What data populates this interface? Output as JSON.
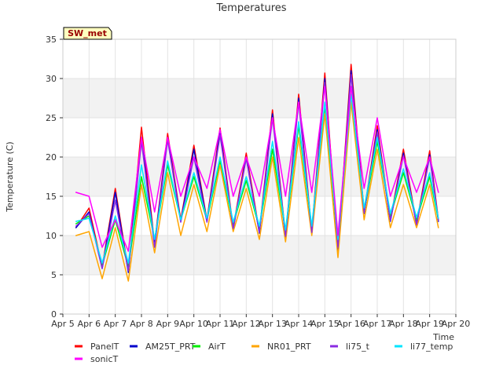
{
  "chart_data": {
    "type": "line",
    "title": "Temperatures",
    "xlabel": "Time",
    "ylabel": "Temperature (C)",
    "annotation": "SW_met",
    "x_ticks": [
      "Apr 5",
      "Apr 6",
      "Apr 7",
      "Apr 8",
      "Apr 9",
      "Apr 10",
      "Apr 11",
      "Apr 12",
      "Apr 13",
      "Apr 14",
      "Apr 15",
      "Apr 16",
      "Apr 17",
      "Apr 18",
      "Apr 19",
      "Apr 20"
    ],
    "y_ticks": [
      "0",
      "5",
      "10",
      "15",
      "20",
      "25",
      "30",
      "35"
    ],
    "ylim": [
      0,
      35
    ],
    "xlim": [
      "2024-04-05",
      "2024-04-20"
    ],
    "grid": true,
    "banded_background": true,
    "legend_position": "bottom",
    "x_dates": [
      "Apr 5 12:00",
      "Apr 6 00:00",
      "Apr 6 12:00",
      "Apr 7 00:00",
      "Apr 7 12:00",
      "Apr 8 00:00",
      "Apr 8 12:00",
      "Apr 9 00:00",
      "Apr 9 12:00",
      "Apr 10 00:00",
      "Apr 10 12:00",
      "Apr 11 00:00",
      "Apr 11 12:00",
      "Apr 12 00:00",
      "Apr 12 12:00",
      "Apr 13 00:00",
      "Apr 13 12:00",
      "Apr 14 00:00",
      "Apr 14 12:00",
      "Apr 15 00:00",
      "Apr 15 12:00",
      "Apr 16 00:00",
      "Apr 16 12:00",
      "Apr 17 00:00",
      "Apr 17 12:00",
      "Apr 18 00:00",
      "Apr 18 12:00",
      "Apr 19 00:00",
      "Apr 19 08:00"
    ],
    "series": [
      {
        "name": "PanelT",
        "color": "#ff0000",
        "values": [
          11.0,
          13.5,
          6.0,
          16.0,
          5.5,
          23.8,
          9.0,
          23.0,
          12.0,
          21.5,
          12.0,
          23.7,
          11.0,
          20.5,
          10.5,
          26.0,
          10.0,
          28.0,
          10.5,
          30.7,
          8.0,
          31.8,
          13.0,
          24.0,
          12.0,
          21.0,
          11.5,
          20.8,
          12.0
        ]
      },
      {
        "name": "AM25T_PRT",
        "color": "#0000cc",
        "values": [
          11.0,
          13.0,
          5.8,
          15.5,
          5.3,
          22.5,
          8.8,
          22.5,
          11.8,
          21.0,
          11.8,
          23.2,
          10.8,
          20.0,
          10.3,
          25.5,
          9.8,
          27.5,
          10.3,
          30.0,
          8.0,
          31.0,
          12.8,
          23.5,
          11.8,
          20.5,
          11.3,
          20.3,
          11.8
        ]
      },
      {
        "name": "AirT",
        "color": "#00ee00",
        "values": [
          11.5,
          12.5,
          6.2,
          12.0,
          6.0,
          17.5,
          9.5,
          19.0,
          12.0,
          17.5,
          12.0,
          19.5,
          11.5,
          17.0,
          11.0,
          21.0,
          10.5,
          24.0,
          11.0,
          26.5,
          9.0,
          28.0,
          13.0,
          22.0,
          12.5,
          18.0,
          12.0,
          17.5,
          12.0
        ]
      },
      {
        "name": "NR01_PRT",
        "color": "#ffa500",
        "values": [
          10.0,
          10.5,
          4.5,
          11.0,
          4.2,
          16.5,
          7.8,
          18.0,
          10.0,
          16.5,
          10.5,
          19.0,
          10.5,
          16.0,
          9.5,
          20.0,
          9.2,
          22.5,
          10.0,
          25.5,
          7.2,
          27.0,
          12.0,
          21.0,
          11.0,
          16.5,
          11.0,
          16.5,
          11.0
        ]
      },
      {
        "name": "li75_t",
        "color": "#8a2be2",
        "values": [
          11.2,
          12.8,
          5.8,
          14.5,
          5.5,
          22.0,
          8.5,
          22.2,
          11.7,
          20.0,
          11.7,
          22.8,
          10.9,
          19.8,
          10.4,
          25.0,
          9.9,
          27.0,
          10.4,
          29.5,
          8.5,
          30.5,
          12.9,
          23.2,
          11.9,
          20.2,
          11.4,
          20.0,
          11.9
        ]
      },
      {
        "name": "li77_temp",
        "color": "#00e5ff",
        "values": [
          11.8,
          12.2,
          6.5,
          12.5,
          6.5,
          19.0,
          9.5,
          19.5,
          12.0,
          18.0,
          12.2,
          20.0,
          11.7,
          17.5,
          11.2,
          22.0,
          10.7,
          24.5,
          11.2,
          27.0,
          9.5,
          28.0,
          13.5,
          22.5,
          12.8,
          18.5,
          12.3,
          18.0,
          12.2
        ]
      },
      {
        "name": "sonicT",
        "color": "#ff00ff",
        "values": [
          15.5,
          15.0,
          8.5,
          12.0,
          8.0,
          22.5,
          13.0,
          22.5,
          15.0,
          20.0,
          16.0,
          23.5,
          15.0,
          20.0,
          15.0,
          25.0,
          15.0,
          27.0,
          15.5,
          29.0,
          10.0,
          29.0,
          16.0,
          25.0,
          15.0,
          20.0,
          15.5,
          20.0,
          15.5
        ]
      }
    ]
  }
}
